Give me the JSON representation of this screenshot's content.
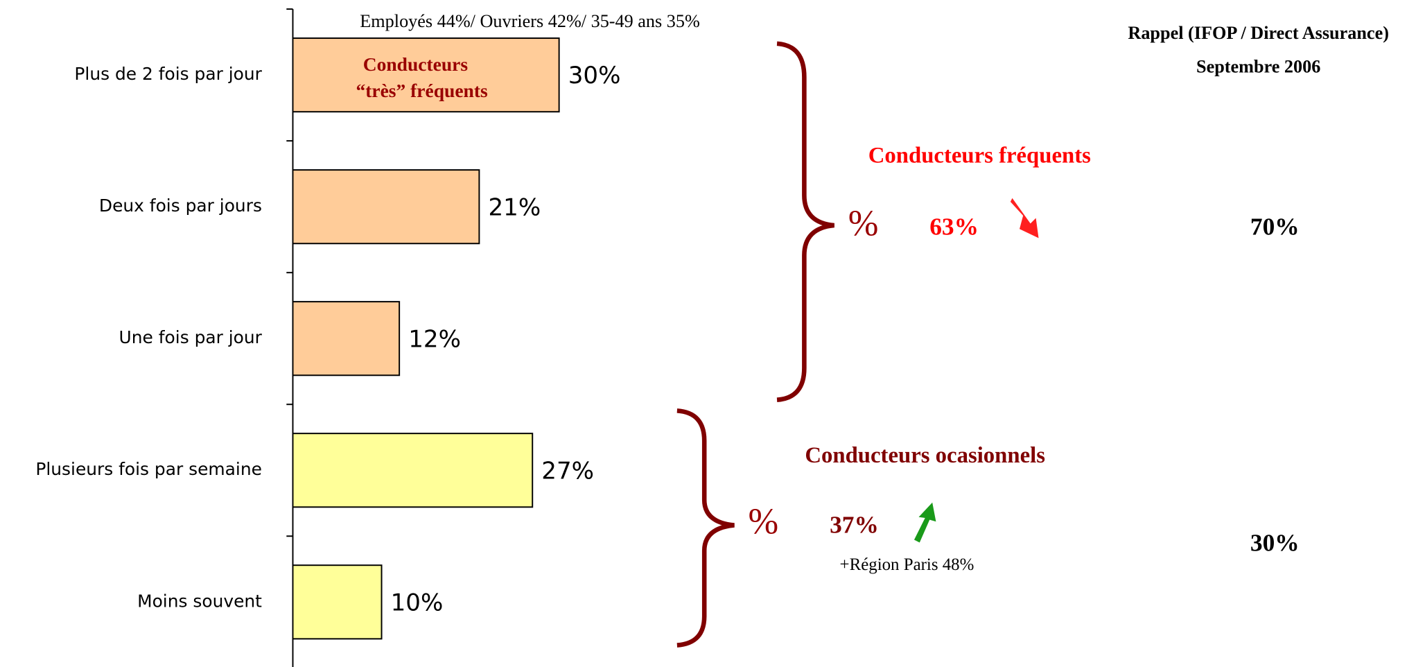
{
  "chart_data": {
    "type": "bar",
    "orientation": "horizontal",
    "categories": [
      "Plus de 2 fois par jour",
      "Deux fois par jours",
      "Une fois par jour",
      "Plusieurs fois par semaine",
      "Moins souvent"
    ],
    "values": [
      30,
      21,
      12,
      27,
      10
    ],
    "value_labels": [
      "30%",
      "21%",
      "12%",
      "27%",
      "10%"
    ],
    "colors": [
      "#ffcc99",
      "#ffcc99",
      "#ffcc99",
      "#ffff99",
      "#ffff99"
    ],
    "annotations": {
      "top_note": "Employés 44%/ Ouvriers 42%/ 35-49 ans 35%",
      "inner_label_1": "Conducteurs",
      "inner_label_2": "“très” fréquents",
      "group1_title": "Conducteurs fréquents",
      "group1_symbol": "%",
      "group1_value": "63%",
      "group2_title": "Conducteurs ocasionnels",
      "group2_symbol": "%",
      "group2_value": "37%",
      "group2_note": "+Région Paris 48%",
      "reminder_title_1": "Rappel (IFOP / Direct Assurance)",
      "reminder_title_2": "Septembre 2006",
      "reminder_value_1": "70%",
      "reminder_value_2": "30%"
    }
  }
}
